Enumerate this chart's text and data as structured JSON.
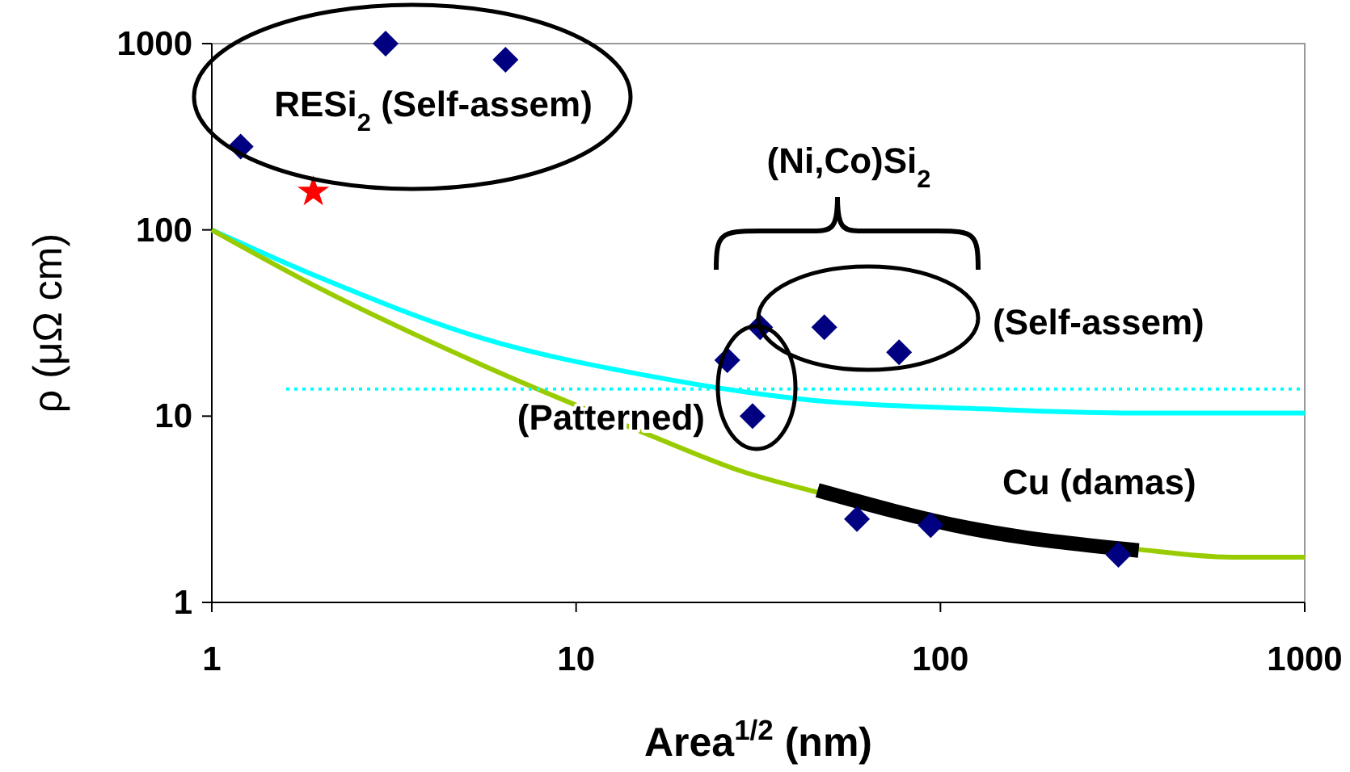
{
  "chart_data": {
    "type": "scatter",
    "xlabel": "Area$^{1/2}$ (nm)",
    "ylabel": "ρ (μΩ cm)",
    "log": "xy",
    "grid": false,
    "xlim": [
      1,
      1000
    ],
    "xticks": [
      1,
      10,
      100,
      1000
    ],
    "ylim": [
      1,
      1000
    ],
    "yticks": [
      1,
      10,
      100,
      1000
    ],
    "series": [
      {
        "type": "line",
        "color": "#00ffff",
        "line_style": "solid",
        "x": [
          1,
          2,
          5.6,
          15.7,
          29,
          44,
          121,
          338,
          1000
        ],
        "values": [
          100,
          55,
          26,
          16.5,
          13.5,
          12.2,
          11,
          10.4,
          10.4
        ]
      },
      {
        "type": "line",
        "color": "#99cc00",
        "line_style": "solid",
        "x": [
          1,
          2,
          5.6,
          15.7,
          29,
          46,
          121,
          338,
          625,
          1000
        ],
        "values": [
          100,
          48,
          18.6,
          8,
          5,
          3.9,
          2.5,
          1.94,
          1.75,
          1.75
        ]
      },
      {
        "type": "line",
        "color": "#00ffff",
        "line_style": "dotted",
        "x": [
          1.6,
          1000
        ],
        "values": [
          14,
          14
        ]
      },
      {
        "type": "line",
        "color": "#000000",
        "line_style": "solid",
        "x": [
          46,
          120,
          350
        ],
        "values": [
          4,
          2.5,
          1.9
        ]
      },
      {
        "color": "#000080",
        "marker": "diamond",
        "x": [
          1.2,
          3,
          6.4,
          26,
          32,
          30.5,
          48,
          77,
          59,
          94,
          308
        ],
        "values": [
          280,
          1000,
          820,
          20,
          30,
          10,
          30,
          22,
          2.8,
          2.6,
          1.8
        ]
      },
      {
        "color": "#ff0000",
        "marker": "star",
        "x": [
          1.9
        ],
        "values": [
          160
        ]
      }
    ],
    "annotations": [
      "RESi$_{2}$ (Self-assem)",
      "(Ni,Co)Si$_{2}$",
      "(Self-assem)",
      "(Patterned)",
      "Cu (damas)"
    ]
  }
}
